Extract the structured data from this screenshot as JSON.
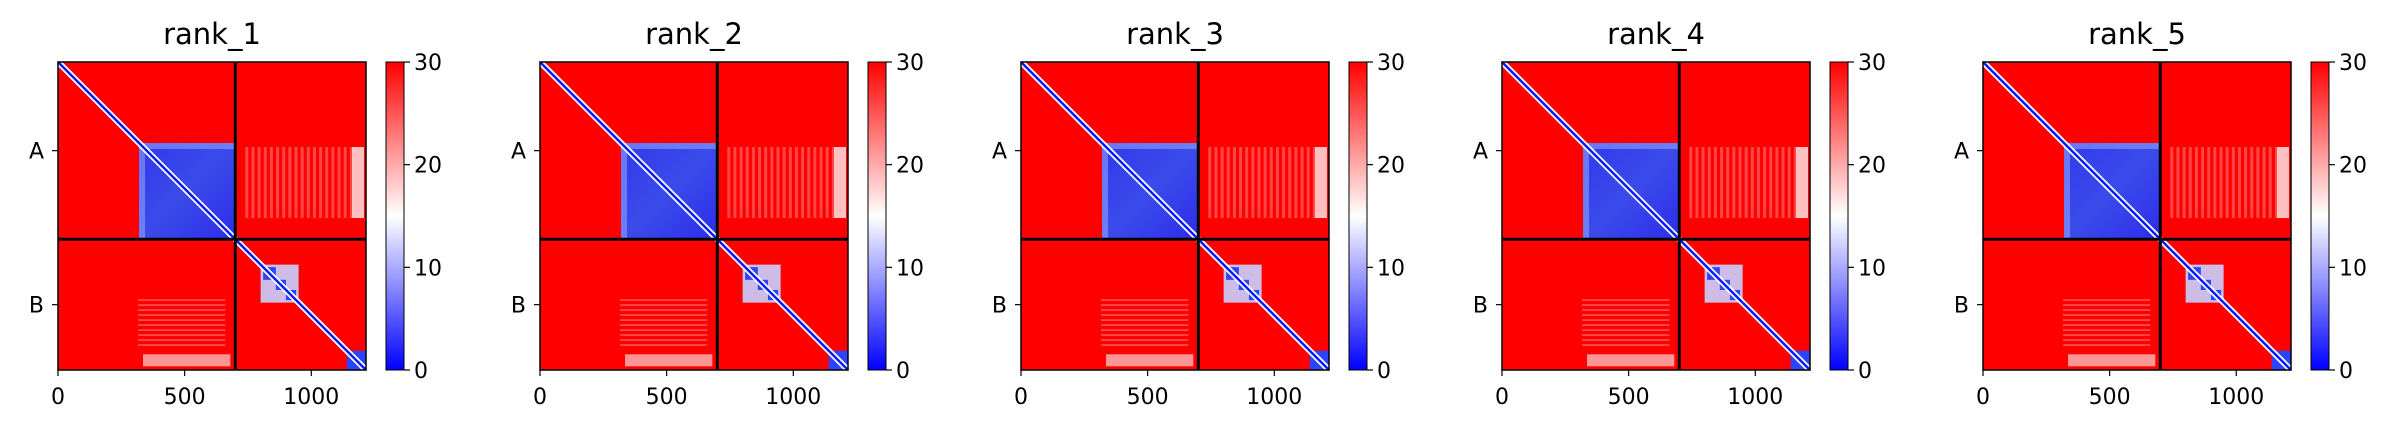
{
  "chart_data": {
    "type": "heatmap",
    "description_colormap": "bwr",
    "colors": {
      "low": "#0000ff",
      "mid": "#ffffff",
      "high": "#ff0000",
      "divider": "#000000"
    },
    "color_range": [
      0,
      30
    ],
    "colorbar_ticks": [
      "0",
      "10",
      "20",
      "30"
    ],
    "x_ticks": [
      {
        "value": 0,
        "label": "0"
      },
      {
        "value": 500,
        "label": "500"
      },
      {
        "value": 1000,
        "label": "1000"
      }
    ],
    "x_range": [
      0,
      1216
    ],
    "chain_boundary": 700,
    "chains": [
      "A",
      "B"
    ],
    "panels": [
      {
        "title": "rank_1",
        "rigid_block_end": 320
      },
      {
        "title": "rank_2",
        "rigid_block_end": 320
      },
      {
        "title": "rank_3",
        "rigid_block_end": 320
      },
      {
        "title": "rank_4",
        "rigid_block_end": 320
      },
      {
        "title": "rank_5",
        "rigid_block_end": 320
      }
    ]
  }
}
